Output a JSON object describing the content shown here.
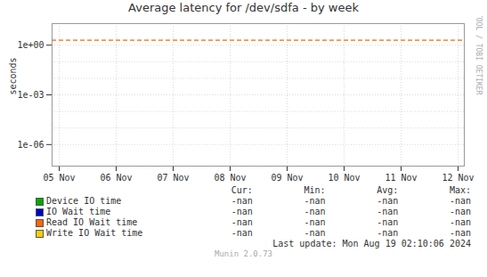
{
  "chart_data": {
    "type": "line",
    "title": "Average latency for /dev/sdfa - by week",
    "y_label": "seconds",
    "side_label": "RRDTOOL / TOBI OETIKER",
    "categories": [
      "05 Nov",
      "06 Nov",
      "07 Nov",
      "08 Nov",
      "09 Nov",
      "10 Nov",
      "11 Nov",
      "12 Nov"
    ],
    "log": "y",
    "ylim": [
      5e-08,
      20.0
    ],
    "yticks": [
      {
        "value": 1e-06,
        "label": "1e-06"
      },
      {
        "value": 0.001,
        "label": "1e-03"
      },
      {
        "value": 1.0,
        "label": "1e+00"
      }
    ],
    "y_grid": [
      1e-06,
      1e-05,
      0.0001,
      0.001,
      0.01,
      0.1,
      1.0
    ],
    "grid": true,
    "hlines": [
      {
        "value": 2.0,
        "color": "#ff6600",
        "line_style": "dashed"
      }
    ],
    "table_headers": [
      "Cur:",
      "Min:",
      "Avg:",
      "Max:"
    ],
    "series": [
      {
        "name": "Device IO time",
        "color": "#00aa00",
        "values": [
          null,
          null,
          null,
          null,
          null,
          null,
          null,
          null
        ],
        "table_values": [
          "-nan",
          "-nan",
          "-nan",
          "-nan"
        ]
      },
      {
        "name": "IO Wait time",
        "color": "#0000cc",
        "values": [
          null,
          null,
          null,
          null,
          null,
          null,
          null,
          null
        ],
        "table_values": [
          "-nan",
          "-nan",
          "-nan",
          "-nan"
        ]
      },
      {
        "name": "Read IO Wait time",
        "color": "#ff6600",
        "values": [
          null,
          null,
          null,
          null,
          null,
          null,
          null,
          null
        ],
        "table_values": [
          "-nan",
          "-nan",
          "-nan",
          "-nan"
        ]
      },
      {
        "name": "Write IO Wait time",
        "color": "#ffcc00",
        "values": [
          null,
          null,
          null,
          null,
          null,
          null,
          null,
          null
        ],
        "table_values": [
          "-nan",
          "-nan",
          "-nan",
          "-nan"
        ]
      }
    ],
    "footer": "Last update: Mon Aug 19 02:10:06 2024",
    "version": "Munin 2.0.73"
  }
}
